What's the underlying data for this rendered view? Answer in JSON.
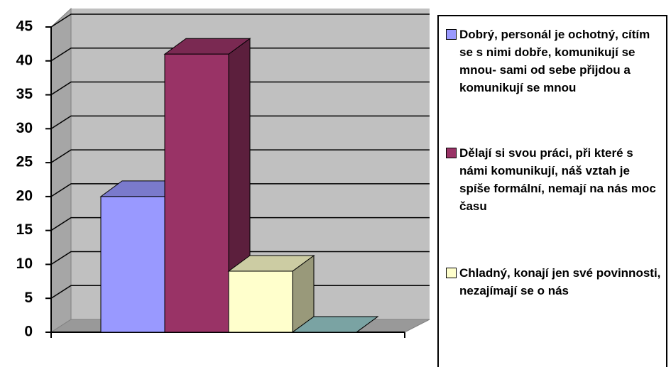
{
  "chart_data": {
    "type": "bar3d",
    "series": [
      {
        "name": "Dobrý, personál je ochotný, cítím se s nimi dobře, komunikují se mnou- sami od sebe přijdou a komunikují se mnou",
        "color": "#9999ff",
        "values": [
          20
        ]
      },
      {
        "name": "Dělají si svou práci, při které s námi komunikují, náš vztah je spíše formální, nemají na nás moc času",
        "color": "#993366",
        "values": [
          41
        ]
      },
      {
        "name": "Chladný, konají jen své povinnosti, nezajímají se o nás",
        "color": "#ffffcc",
        "values": [
          9
        ]
      },
      {
        "color": "#99cccc",
        "values": [
          0
        ]
      }
    ],
    "ylim": [
      0,
      45
    ],
    "yticks": [
      0,
      5,
      10,
      15,
      20,
      25,
      30,
      35,
      40,
      45
    ],
    "grid": true
  }
}
